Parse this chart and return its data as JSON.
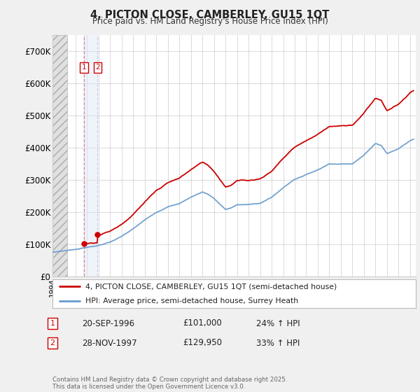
{
  "title": "4, PICTON CLOSE, CAMBERLEY, GU15 1QT",
  "subtitle": "Price paid vs. HM Land Registry's House Price Index (HPI)",
  "xlim_start": 1994.0,
  "xlim_end": 2025.5,
  "ylim": [
    0,
    750000
  ],
  "yticks": [
    0,
    100000,
    200000,
    300000,
    400000,
    500000,
    600000,
    700000
  ],
  "ytick_labels": [
    "£0",
    "£100K",
    "£200K",
    "£300K",
    "£400K",
    "£500K",
    "£600K",
    "£700K"
  ],
  "background_color": "#f0f0f0",
  "plot_bg_color": "#ffffff",
  "grid_color": "#cccccc",
  "line1_color": "#cc0000",
  "line2_color": "#6699cc",
  "transaction1_date": 1996.72,
  "transaction1_price": 101000,
  "transaction2_date": 1997.91,
  "transaction2_price": 129950,
  "legend_line1": "4, PICTON CLOSE, CAMBERLEY, GU15 1QT (semi-detached house)",
  "legend_line2": "HPI: Average price, semi-detached house, Surrey Heath",
  "table_rows": [
    [
      "1",
      "20-SEP-1996",
      "£101,000",
      "24% ↑ HPI"
    ],
    [
      "2",
      "28-NOV-1997",
      "£129,950",
      "33% ↑ HPI"
    ]
  ],
  "footer": "Contains HM Land Registry data © Crown copyright and database right 2025.\nThis data is licensed under the Open Government Licence v3.0."
}
